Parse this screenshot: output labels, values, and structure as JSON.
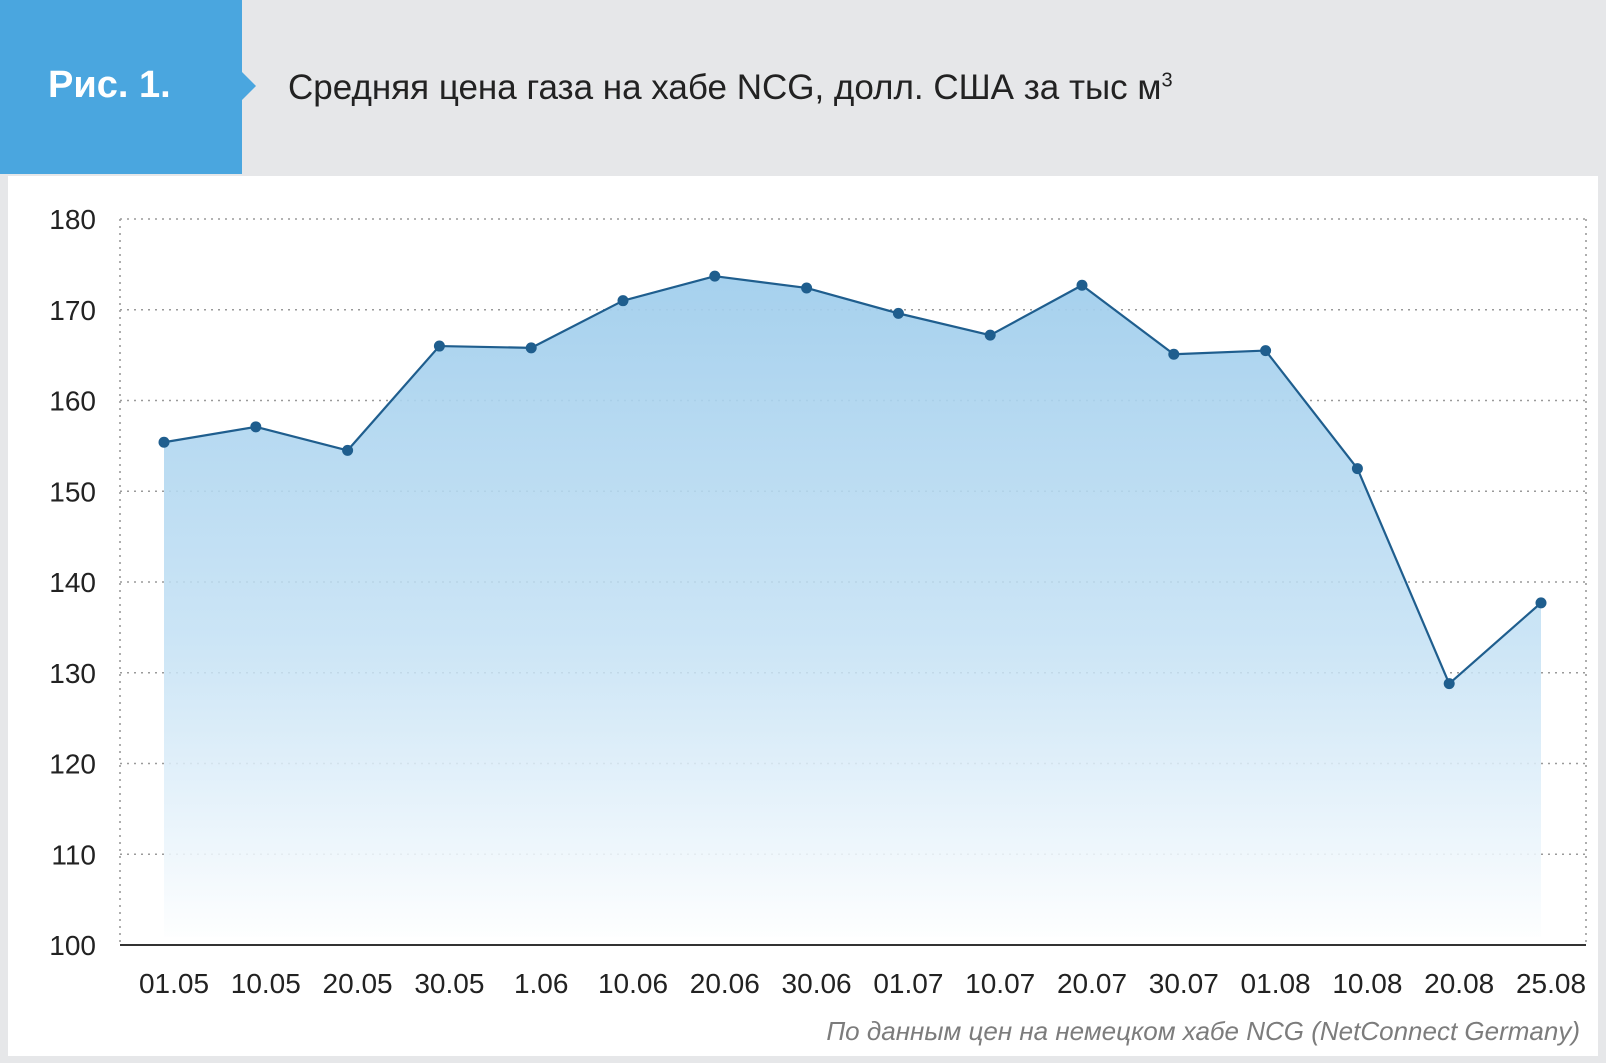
{
  "header": {
    "fig_label": "Рис. 1.",
    "title_main": "Средняя цена газа на хабе NCG, долл. США за тыс м",
    "title_sup": "3"
  },
  "source_note": "По данным цен на немецком хабе NCG (NetConnect Germany)",
  "colors": {
    "accent": "#4aa6df",
    "line": "#1f5e8e",
    "marker": "#1f5e8e",
    "area_top": "#9fcdec",
    "grid": "#9a9a9a"
  },
  "chart_data": {
    "type": "area",
    "title": "Средняя цена газа на хабе NCG, долл. США за тыс м3",
    "categories": [
      "01.05",
      "10.05",
      "20.05",
      "30.05",
      "1.06",
      "10.06",
      "20.06",
      "30.06",
      "01.07",
      "10.07",
      "20.07",
      "30.07",
      "01.08",
      "10.08",
      "20.08",
      "25.08"
    ],
    "series": [
      {
        "values": [
          155.4,
          157.1,
          154.5,
          166.0,
          165.8,
          171.0,
          173.7,
          172.4,
          169.6,
          167.2,
          172.7,
          165.1,
          165.5,
          152.5,
          128.8,
          137.7
        ]
      }
    ],
    "yticks": [
      100,
      110,
      120,
      130,
      140,
      150,
      160,
      170,
      180
    ],
    "ylim": [
      100,
      180
    ],
    "grid": true,
    "markers": true
  }
}
